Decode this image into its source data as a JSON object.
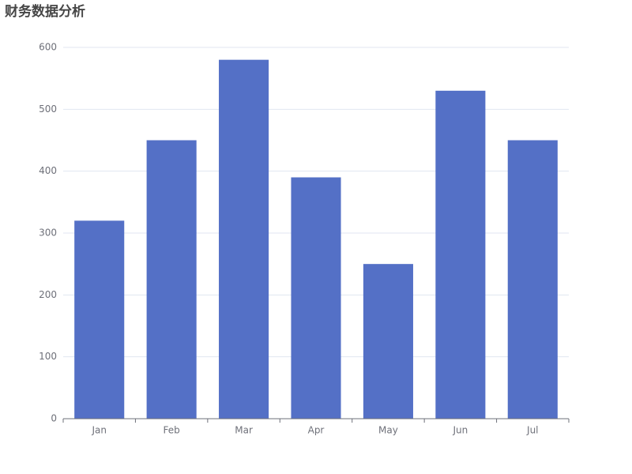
{
  "chart_data": {
    "type": "bar",
    "title": "财务数据分析",
    "categories": [
      "Jan",
      "Feb",
      "Mar",
      "Apr",
      "May",
      "Jun",
      "Jul"
    ],
    "values": [
      320,
      450,
      580,
      390,
      250,
      530,
      450
    ],
    "color": "#5470c6",
    "ylim": [
      0,
      600
    ],
    "yticks": [
      0,
      100,
      200,
      300,
      400,
      500,
      600
    ],
    "grid": true
  }
}
